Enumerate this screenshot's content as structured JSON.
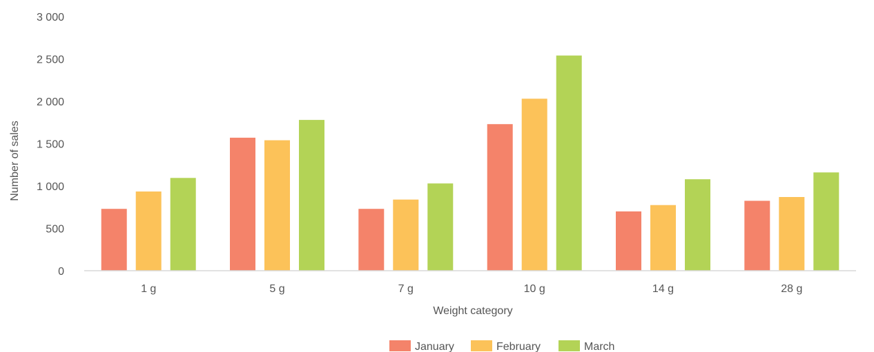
{
  "chart_data": {
    "type": "bar",
    "title": "",
    "xlabel": "Weight category",
    "ylabel": "Number of sales",
    "ylim": [
      0,
      3000
    ],
    "yticks": [
      0,
      500,
      1000,
      1500,
      2000,
      2500,
      3000
    ],
    "ytick_labels": [
      "0",
      "500",
      "1 000",
      "1 500",
      "2 000",
      "2 500",
      "3 000"
    ],
    "categories": [
      "1 g",
      "5 g",
      "7 g",
      "10 g",
      "14 g",
      "28 g"
    ],
    "series": [
      {
        "name": "January",
        "color": "#f4836a",
        "values": [
          730,
          1570,
          730,
          1730,
          700,
          825
        ]
      },
      {
        "name": "February",
        "color": "#fcc259",
        "values": [
          935,
          1540,
          840,
          2030,
          775,
          870
        ]
      },
      {
        "name": "March",
        "color": "#b3d356",
        "values": [
          1095,
          1780,
          1030,
          2540,
          1080,
          1160
        ]
      }
    ],
    "grid": false,
    "legend_position": "bottom"
  }
}
